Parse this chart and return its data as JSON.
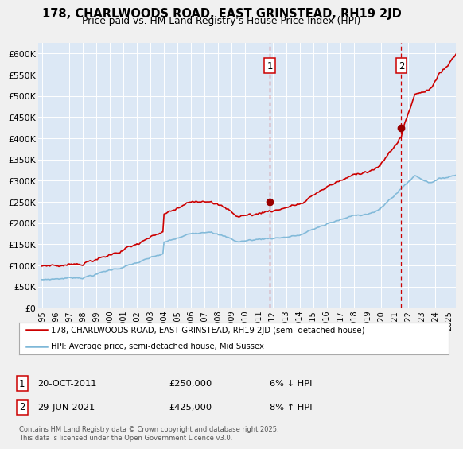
{
  "title": "178, CHARLWOODS ROAD, EAST GRINSTEAD, RH19 2JD",
  "subtitle": "Price paid vs. HM Land Registry's House Price Index (HPI)",
  "ylabel_ticks": [
    "£0",
    "£50K",
    "£100K",
    "£150K",
    "£200K",
    "£250K",
    "£300K",
    "£350K",
    "£400K",
    "£450K",
    "£500K",
    "£550K",
    "£600K"
  ],
  "ytick_values": [
    0,
    50000,
    100000,
    150000,
    200000,
    250000,
    300000,
    350000,
    400000,
    450000,
    500000,
    550000,
    600000
  ],
  "ylim": [
    0,
    625000
  ],
  "xlim_start": 1994.7,
  "xlim_end": 2025.5,
  "sale1_year": 2011.8,
  "sale1_price": 250000,
  "sale1_label": "1",
  "sale2_year": 2021.5,
  "sale2_price": 425000,
  "sale2_label": "2",
  "hpi_line_color": "#7eb8d8",
  "price_line_color": "#cc0000",
  "sale_marker_color": "#990000",
  "dashed_line_color": "#cc0000",
  "plot_bg_color": "#dce8f5",
  "grid_color": "#ffffff",
  "legend1_text": "178, CHARLWOODS ROAD, EAST GRINSTEAD, RH19 2JD (semi-detached house)",
  "legend2_text": "HPI: Average price, semi-detached house, Mid Sussex",
  "footnote": "Contains HM Land Registry data © Crown copyright and database right 2025.\nThis data is licensed under the Open Government Licence v3.0.",
  "xtick_years": [
    1995,
    1996,
    1997,
    1998,
    1999,
    2000,
    2001,
    2002,
    2003,
    2004,
    2005,
    2006,
    2007,
    2008,
    2009,
    2010,
    2011,
    2012,
    2013,
    2014,
    2015,
    2016,
    2017,
    2018,
    2019,
    2020,
    2021,
    2022,
    2023,
    2024,
    2025
  ],
  "ann1_date": "20-OCT-2011",
  "ann1_price": "£250,000",
  "ann1_pct": "6% ↓ HPI",
  "ann2_date": "29-JUN-2021",
  "ann2_price": "£425,000",
  "ann2_pct": "8% ↑ HPI"
}
